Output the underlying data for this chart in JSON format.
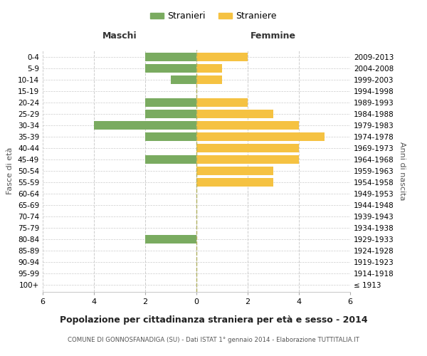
{
  "age_groups": [
    "100+",
    "95-99",
    "90-94",
    "85-89",
    "80-84",
    "75-79",
    "70-74",
    "65-69",
    "60-64",
    "55-59",
    "50-54",
    "45-49",
    "40-44",
    "35-39",
    "30-34",
    "25-29",
    "20-24",
    "15-19",
    "10-14",
    "5-9",
    "0-4"
  ],
  "birth_years": [
    "≤ 1913",
    "1914-1918",
    "1919-1923",
    "1924-1928",
    "1929-1933",
    "1934-1938",
    "1939-1943",
    "1944-1948",
    "1949-1953",
    "1954-1958",
    "1959-1963",
    "1964-1968",
    "1969-1973",
    "1974-1978",
    "1979-1983",
    "1984-1988",
    "1989-1993",
    "1994-1998",
    "1999-2003",
    "2004-2008",
    "2009-2013"
  ],
  "maschi": [
    0,
    0,
    0,
    0,
    2,
    0,
    0,
    0,
    0,
    0,
    0,
    2,
    0,
    2,
    4,
    2,
    2,
    0,
    1,
    2,
    2
  ],
  "femmine": [
    0,
    0,
    0,
    0,
    0,
    0,
    0,
    0,
    0,
    3,
    3,
    4,
    4,
    5,
    4,
    3,
    2,
    0,
    1,
    1,
    2
  ],
  "maschi_color": "#7aab60",
  "femmine_color": "#f5c242",
  "title": "Popolazione per cittadinanza straniera per età e sesso - 2014",
  "subtitle": "COMUNE DI GONNOSFANADIGA (SU) - Dati ISTAT 1° gennaio 2014 - Elaborazione TUTTITALIA.IT",
  "xlabel_left": "Maschi",
  "xlabel_right": "Femmine",
  "ylabel_left": "Fasce di età",
  "ylabel_right": "Anni di nascita",
  "legend_maschi": "Stranieri",
  "legend_femmine": "Straniere",
  "xlim": 6,
  "background_color": "#ffffff",
  "grid_color": "#cccccc",
  "bar_height": 0.75
}
